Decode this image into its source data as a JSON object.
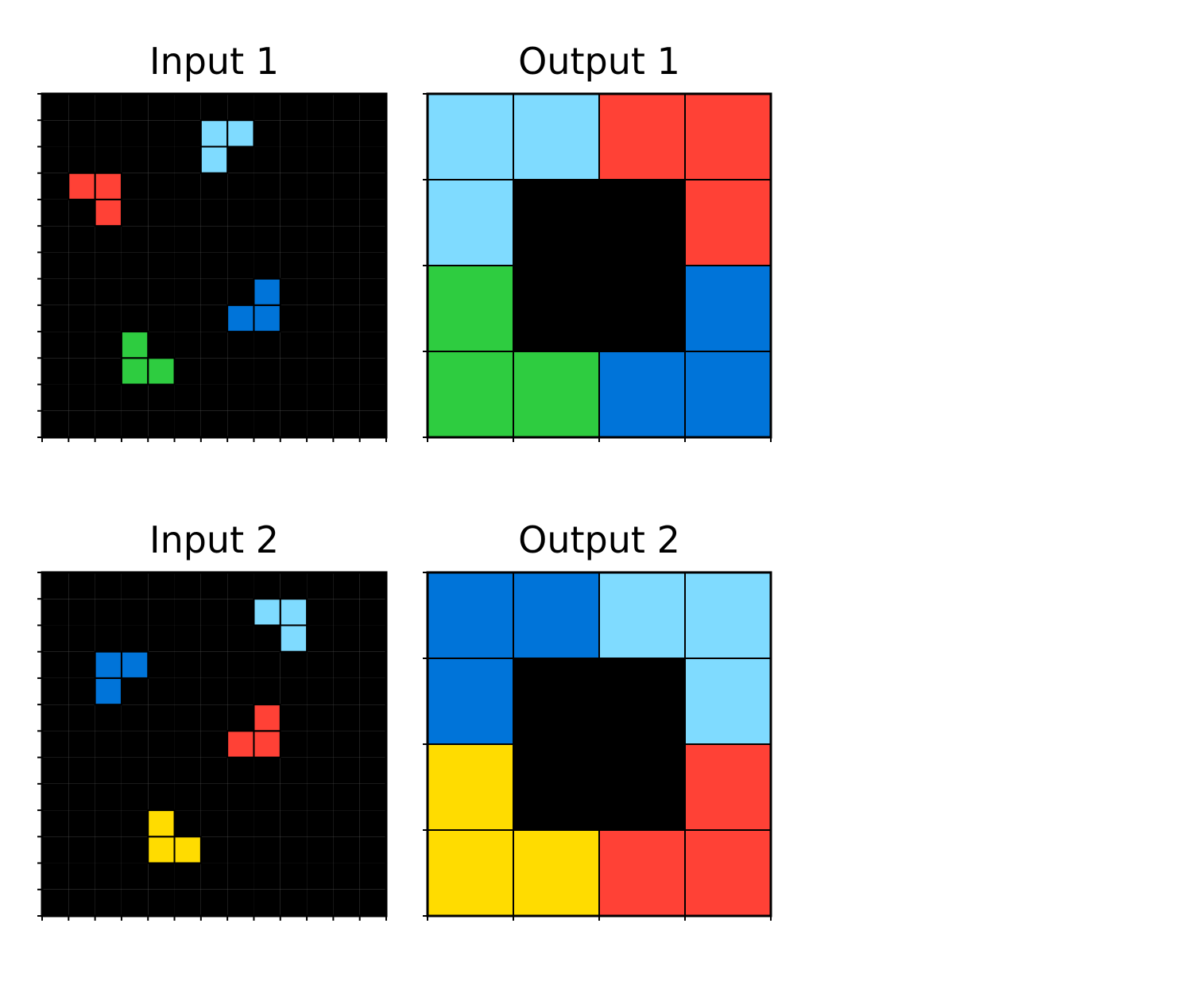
{
  "colors": {
    "0": "#000000",
    "1": "#0074D9",
    "2": "#FF4136",
    "3": "#2ECC40",
    "4": "#FFDC00",
    "8": "#7FDBFF",
    "gridline": "#000000"
  },
  "panels": [
    {
      "title": "Input 1",
      "rows": 13,
      "cols": 13,
      "grid": [
        [
          0,
          0,
          0,
          0,
          0,
          0,
          0,
          0,
          0,
          0,
          0,
          0,
          0
        ],
        [
          0,
          0,
          0,
          0,
          0,
          0,
          8,
          8,
          0,
          0,
          0,
          0,
          0
        ],
        [
          0,
          0,
          0,
          0,
          0,
          0,
          8,
          0,
          0,
          0,
          0,
          0,
          0
        ],
        [
          0,
          2,
          2,
          0,
          0,
          0,
          0,
          0,
          0,
          0,
          0,
          0,
          0
        ],
        [
          0,
          0,
          2,
          0,
          0,
          0,
          0,
          0,
          0,
          0,
          0,
          0,
          0
        ],
        [
          0,
          0,
          0,
          0,
          0,
          0,
          0,
          0,
          0,
          0,
          0,
          0,
          0
        ],
        [
          0,
          0,
          0,
          0,
          0,
          0,
          0,
          0,
          0,
          0,
          0,
          0,
          0
        ],
        [
          0,
          0,
          0,
          0,
          0,
          0,
          0,
          0,
          1,
          0,
          0,
          0,
          0
        ],
        [
          0,
          0,
          0,
          0,
          0,
          0,
          0,
          1,
          1,
          0,
          0,
          0,
          0
        ],
        [
          0,
          0,
          0,
          3,
          0,
          0,
          0,
          0,
          0,
          0,
          0,
          0,
          0
        ],
        [
          0,
          0,
          0,
          3,
          3,
          0,
          0,
          0,
          0,
          0,
          0,
          0,
          0
        ],
        [
          0,
          0,
          0,
          0,
          0,
          0,
          0,
          0,
          0,
          0,
          0,
          0,
          0
        ],
        [
          0,
          0,
          0,
          0,
          0,
          0,
          0,
          0,
          0,
          0,
          0,
          0,
          0
        ]
      ]
    },
    {
      "title": "Output 1",
      "rows": 4,
      "cols": 4,
      "grid": [
        [
          8,
          8,
          2,
          2
        ],
        [
          8,
          0,
          0,
          2
        ],
        [
          3,
          0,
          0,
          1
        ],
        [
          3,
          3,
          1,
          1
        ]
      ]
    },
    {
      "title": "Input 2",
      "rows": 13,
      "cols": 13,
      "grid": [
        [
          0,
          0,
          0,
          0,
          0,
          0,
          0,
          0,
          0,
          0,
          0,
          0,
          0
        ],
        [
          0,
          0,
          0,
          0,
          0,
          0,
          0,
          0,
          8,
          8,
          0,
          0,
          0
        ],
        [
          0,
          0,
          0,
          0,
          0,
          0,
          0,
          0,
          0,
          8,
          0,
          0,
          0
        ],
        [
          0,
          0,
          1,
          1,
          0,
          0,
          0,
          0,
          0,
          0,
          0,
          0,
          0
        ],
        [
          0,
          0,
          1,
          0,
          0,
          0,
          0,
          0,
          0,
          0,
          0,
          0,
          0
        ],
        [
          0,
          0,
          0,
          0,
          0,
          0,
          0,
          0,
          2,
          0,
          0,
          0,
          0
        ],
        [
          0,
          0,
          0,
          0,
          0,
          0,
          0,
          2,
          2,
          0,
          0,
          0,
          0
        ],
        [
          0,
          0,
          0,
          0,
          0,
          0,
          0,
          0,
          0,
          0,
          0,
          0,
          0
        ],
        [
          0,
          0,
          0,
          0,
          0,
          0,
          0,
          0,
          0,
          0,
          0,
          0,
          0
        ],
        [
          0,
          0,
          0,
          0,
          4,
          0,
          0,
          0,
          0,
          0,
          0,
          0,
          0
        ],
        [
          0,
          0,
          0,
          0,
          4,
          4,
          0,
          0,
          0,
          0,
          0,
          0,
          0
        ],
        [
          0,
          0,
          0,
          0,
          0,
          0,
          0,
          0,
          0,
          0,
          0,
          0,
          0
        ],
        [
          0,
          0,
          0,
          0,
          0,
          0,
          0,
          0,
          0,
          0,
          0,
          0,
          0
        ]
      ]
    },
    {
      "title": "Output 2",
      "rows": 4,
      "cols": 4,
      "grid": [
        [
          1,
          1,
          8,
          8
        ],
        [
          1,
          0,
          0,
          8
        ],
        [
          4,
          0,
          0,
          2
        ],
        [
          4,
          4,
          2,
          2
        ]
      ]
    }
  ]
}
